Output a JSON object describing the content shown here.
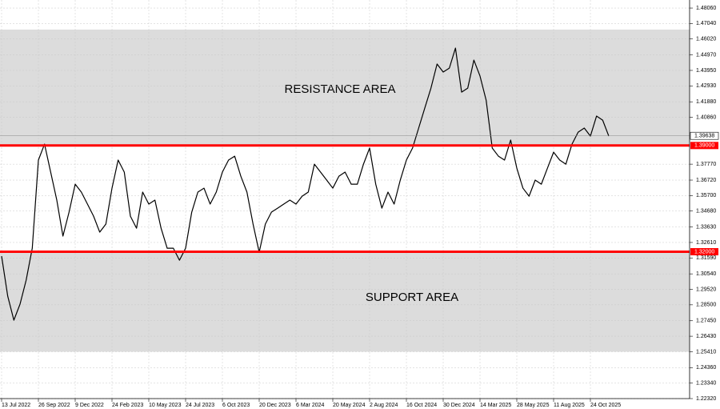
{
  "chart_data": {
    "type": "line",
    "categories": [
      "13 Jul 2022",
      null,
      null,
      null,
      null,
      null,
      "26 Sep 2022",
      null,
      null,
      null,
      null,
      null,
      "9 Dec 2022",
      null,
      null,
      null,
      null,
      null,
      "24 Feb 2023",
      null,
      null,
      null,
      null,
      null,
      "10 May 2023",
      null,
      null,
      null,
      null,
      null,
      "24 Jul 2023",
      null,
      null,
      null,
      null,
      null,
      "6 Oct 2023",
      null,
      null,
      null,
      null,
      null,
      "20 Dec 2023",
      null,
      null,
      null,
      null,
      null,
      "6 Mar 2024",
      null,
      null,
      null,
      null,
      null,
      "20 May 2024",
      null,
      null,
      null,
      null,
      null,
      "2 Aug 2024",
      null,
      null,
      null,
      null,
      null,
      "16 Oct 2024",
      null,
      null,
      null,
      null,
      null,
      "30 Dec 2024",
      null,
      null,
      null,
      null,
      null,
      "14 Mar 2025",
      null,
      null,
      null,
      null,
      null,
      "28 May 2025",
      null,
      null,
      null,
      null,
      null,
      "11 Aug 2025",
      null,
      null,
      null,
      null,
      null,
      "24 Oct 2025",
      null,
      null,
      null
    ],
    "series": [
      {
        "color": "#000000",
        "values": [
          1.3171,
          1.2907,
          1.2749,
          1.2854,
          1.3012,
          1.3223,
          1.3804,
          1.3909,
          1.3725,
          1.354,
          1.3303,
          1.3461,
          1.3645,
          1.3593,
          1.3514,
          1.3434,
          1.3329,
          1.3382,
          1.3619,
          1.3804,
          1.3725,
          1.3434,
          1.3355,
          1.3593,
          1.3514,
          1.354,
          1.3355,
          1.3223,
          1.3223,
          1.3144,
          1.3223,
          1.3461,
          1.3593,
          1.3619,
          1.3514,
          1.3593,
          1.3725,
          1.3804,
          1.383,
          1.3698,
          1.3593,
          1.3382,
          1.3197,
          1.3382,
          1.3461,
          1.3487,
          1.3514,
          1.354,
          1.3514,
          1.3566,
          1.3593,
          1.3777,
          1.3725,
          1.3672,
          1.3619,
          1.3698,
          1.3725,
          1.3645,
          1.3645,
          1.3777,
          1.3883,
          1.3645,
          1.3487,
          1.3593,
          1.3514,
          1.3672,
          1.3804,
          1.3883,
          1.4015,
          1.4147,
          1.4278,
          1.4437,
          1.4384,
          1.441,
          1.4542,
          1.4252,
          1.4278,
          1.4463,
          1.4358,
          1.4199,
          1.3883,
          1.383,
          1.3804,
          1.3936,
          1.3751,
          1.3619,
          1.3566,
          1.3672,
          1.3645,
          1.3751,
          1.3856,
          1.3804,
          1.3777,
          1.3909,
          1.3988,
          1.4015,
          1.3962,
          1.4094,
          1.4067,
          1.3962
        ]
      }
    ],
    "ylim": [
      1.2232,
      1.4859
    ],
    "yticks": [
      {
        "value": 1.4806,
        "label": "1.48060"
      },
      {
        "value": 1.4704,
        "label": "1.47040"
      },
      {
        "value": 1.4602,
        "label": "1.46020"
      },
      {
        "value": 1.4497,
        "label": "1.44970"
      },
      {
        "value": 1.4395,
        "label": "1.43950"
      },
      {
        "value": 1.4293,
        "label": "1.42930"
      },
      {
        "value": 1.4188,
        "label": "1.41880"
      },
      {
        "value": 1.4086,
        "label": "1.40860"
      },
      {
        "value": 1.3777,
        "label": "1.37770"
      },
      {
        "value": 1.3672,
        "label": "1.36720"
      },
      {
        "value": 1.357,
        "label": "1.35700"
      },
      {
        "value": 1.3468,
        "label": "1.34680"
      },
      {
        "value": 1.3363,
        "label": "1.33630"
      },
      {
        "value": 1.3261,
        "label": "1.32610"
      },
      {
        "value": 1.3159,
        "label": "1.31590"
      },
      {
        "value": 1.3054,
        "label": "1.30540"
      },
      {
        "value": 1.2952,
        "label": "1.29520"
      },
      {
        "value": 1.285,
        "label": "1.28500"
      },
      {
        "value": 1.2745,
        "label": "1.27450"
      },
      {
        "value": 1.2643,
        "label": "1.26430"
      },
      {
        "value": 1.2541,
        "label": "1.25410"
      },
      {
        "value": 1.2436,
        "label": "1.24360"
      },
      {
        "value": 1.2334,
        "label": "1.23340"
      },
      {
        "value": 1.2232,
        "label": "1.22320"
      }
    ],
    "grid": true,
    "zones": [
      {
        "label": "RESISTANCE AREA",
        "from": 1.39,
        "to": 1.4664,
        "color": "#dcdcdc"
      },
      {
        "label": "SUPPORT AREA",
        "from": 1.2541,
        "to": 1.32,
        "color": "#dcdcdc"
      }
    ],
    "levels": [
      {
        "value": 1.39,
        "label": "1.39000",
        "color": "#ff0000"
      },
      {
        "value": 1.32,
        "label": "1.32000",
        "color": "#ff0000"
      }
    ],
    "current_price": {
      "value": 1.39638,
      "label": "1.39638"
    }
  }
}
